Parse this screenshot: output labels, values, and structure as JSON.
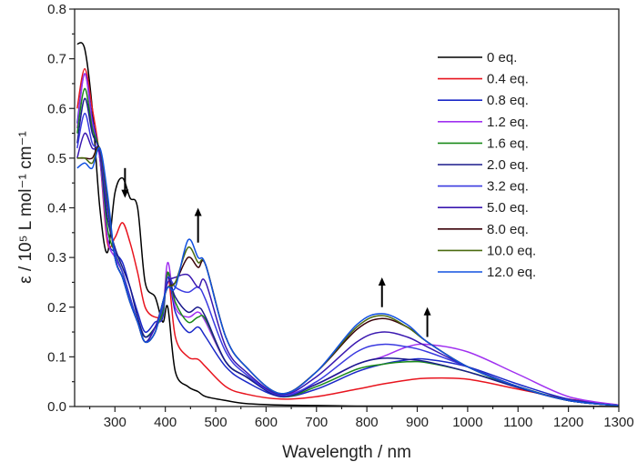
{
  "chart_data": {
    "type": "line",
    "title": "",
    "xlabel": "Wavelength / nm",
    "ylabel": "ε / 10⁵ L mol⁻¹ cm⁻¹",
    "ylabel_parts": {
      "a": "ε / 10",
      "sup1": "5",
      "b": " L mol",
      "sup2": "-1",
      "c": " cm",
      "sup3": "-1"
    },
    "xlim": [
      220,
      1300
    ],
    "ylim": [
      0.0,
      0.8
    ],
    "xticks": [
      300,
      400,
      500,
      600,
      700,
      800,
      900,
      1000,
      1100,
      1200,
      1300
    ],
    "xtick_labels": [
      "300",
      "400",
      "500",
      "600",
      "700",
      "800",
      "900",
      "1000",
      "1100",
      "1200",
      "1300"
    ],
    "yticks": [
      0.0,
      0.1,
      0.2,
      0.3,
      0.4,
      0.5,
      0.6,
      0.7,
      0.8
    ],
    "ytick_labels": [
      "0.0",
      "0.1",
      "0.2",
      "0.3",
      "0.4",
      "0.5",
      "0.6",
      "0.7",
      "0.8"
    ],
    "grid": false,
    "legend_position": "top-right",
    "x": [
      225,
      240,
      255,
      270,
      285,
      300,
      315,
      330,
      345,
      360,
      380,
      395,
      405,
      420,
      445,
      465,
      480,
      520,
      560,
      630,
      700,
      780,
      830,
      880,
      920,
      1000,
      1100,
      1200,
      1300
    ],
    "series": [
      {
        "name": "0 eq.",
        "color": "#000000",
        "values": [
          0.73,
          0.72,
          0.6,
          0.4,
          0.31,
          0.43,
          0.46,
          0.42,
          0.4,
          0.25,
          0.22,
          0.17,
          0.2,
          0.07,
          0.04,
          0.03,
          0.02,
          0.012,
          0.006,
          0.003,
          0.002,
          0.001,
          0.001,
          0.001,
          0.001,
          0.001,
          0.001,
          0.001,
          0.0
        ]
      },
      {
        "name": "0.4 eq.",
        "color": "#e8141e",
        "values": [
          0.6,
          0.68,
          0.6,
          0.5,
          0.33,
          0.34,
          0.37,
          0.33,
          0.27,
          0.2,
          0.18,
          0.19,
          0.27,
          0.14,
          0.1,
          0.095,
          0.08,
          0.04,
          0.025,
          0.015,
          0.02,
          0.035,
          0.045,
          0.053,
          0.057,
          0.055,
          0.035,
          0.015,
          0.003
        ]
      },
      {
        "name": "0.8 eq.",
        "color": "#1a28c8",
        "values": [
          0.57,
          0.67,
          0.58,
          0.5,
          0.34,
          0.31,
          0.29,
          0.24,
          0.19,
          0.15,
          0.17,
          0.18,
          0.27,
          0.19,
          0.15,
          0.16,
          0.14,
          0.08,
          0.05,
          0.02,
          0.035,
          0.07,
          0.085,
          0.094,
          0.095,
          0.08,
          0.045,
          0.015,
          0.003
        ]
      },
      {
        "name": "1.2 eq.",
        "color": "#a030f0",
        "values": [
          0.56,
          0.67,
          0.57,
          0.5,
          0.34,
          0.3,
          0.27,
          0.22,
          0.17,
          0.14,
          0.16,
          0.19,
          0.29,
          0.2,
          0.18,
          0.19,
          0.17,
          0.09,
          0.06,
          0.025,
          0.045,
          0.085,
          0.1,
          0.12,
          0.125,
          0.11,
          0.065,
          0.02,
          0.003
        ]
      },
      {
        "name": "1.6 eq.",
        "color": "#1a8a1a",
        "values": [
          0.55,
          0.64,
          0.56,
          0.51,
          0.36,
          0.31,
          0.27,
          0.22,
          0.17,
          0.14,
          0.16,
          0.19,
          0.27,
          0.21,
          0.17,
          0.18,
          0.175,
          0.09,
          0.06,
          0.02,
          0.04,
          0.075,
          0.085,
          0.09,
          0.088,
          0.07,
          0.04,
          0.012,
          0.002
        ]
      },
      {
        "name": "2.0 eq.",
        "color": "#1a1a8c",
        "values": [
          0.53,
          0.62,
          0.55,
          0.51,
          0.38,
          0.32,
          0.28,
          0.24,
          0.18,
          0.14,
          0.16,
          0.2,
          0.26,
          0.22,
          0.19,
          0.2,
          0.18,
          0.09,
          0.06,
          0.02,
          0.045,
          0.085,
          0.097,
          0.095,
          0.09,
          0.07,
          0.038,
          0.012,
          0.002
        ]
      },
      {
        "name": "3.2 eq.",
        "color": "#3a3ae0",
        "values": [
          0.52,
          0.59,
          0.53,
          0.51,
          0.4,
          0.31,
          0.27,
          0.22,
          0.17,
          0.13,
          0.16,
          0.2,
          0.26,
          0.24,
          0.23,
          0.24,
          0.215,
          0.11,
          0.065,
          0.022,
          0.05,
          0.11,
          0.125,
          0.12,
          0.11,
          0.08,
          0.04,
          0.012,
          0.002
        ]
      },
      {
        "name": "5.0 eq.",
        "color": "#3a18b0",
        "values": [
          0.5,
          0.55,
          0.52,
          0.51,
          0.41,
          0.3,
          0.26,
          0.21,
          0.17,
          0.13,
          0.16,
          0.21,
          0.25,
          0.26,
          0.265,
          0.24,
          0.25,
          0.12,
          0.07,
          0.024,
          0.06,
          0.13,
          0.15,
          0.14,
          0.12,
          0.08,
          0.04,
          0.012,
          0.002
        ]
      },
      {
        "name": "8.0 eq.",
        "color": "#3a0008",
        "values": [
          0.5,
          0.5,
          0.5,
          0.52,
          0.42,
          0.3,
          0.26,
          0.21,
          0.17,
          0.13,
          0.15,
          0.21,
          0.24,
          0.25,
          0.3,
          0.28,
          0.285,
          0.14,
          0.08,
          0.026,
          0.07,
          0.155,
          0.177,
          0.16,
          0.13,
          0.08,
          0.04,
          0.012,
          0.002
        ]
      },
      {
        "name": "10.0 eq.",
        "color": "#4a6a10",
        "values": [
          0.5,
          0.5,
          0.49,
          0.52,
          0.42,
          0.3,
          0.26,
          0.21,
          0.17,
          0.13,
          0.15,
          0.21,
          0.24,
          0.25,
          0.32,
          0.29,
          0.285,
          0.14,
          0.08,
          0.026,
          0.07,
          0.16,
          0.183,
          0.16,
          0.13,
          0.08,
          0.04,
          0.012,
          0.002
        ]
      },
      {
        "name": "12.0 eq.",
        "color": "#1050e0",
        "values": [
          0.48,
          0.49,
          0.48,
          0.52,
          0.43,
          0.3,
          0.26,
          0.21,
          0.17,
          0.13,
          0.15,
          0.21,
          0.24,
          0.24,
          0.335,
          0.3,
          0.285,
          0.14,
          0.08,
          0.026,
          0.07,
          0.165,
          0.187,
          0.165,
          0.13,
          0.08,
          0.04,
          0.012,
          0.002
        ]
      }
    ],
    "annotations": [
      {
        "type": "arrow",
        "x": 320,
        "from": 0.48,
        "to": 0.42,
        "direction": "down"
      },
      {
        "type": "arrow",
        "x": 465,
        "from": 0.33,
        "to": 0.4,
        "direction": "up"
      },
      {
        "type": "arrow",
        "x": 830,
        "from": 0.2,
        "to": 0.26,
        "direction": "up"
      },
      {
        "type": "arrow",
        "x": 920,
        "from": 0.14,
        "to": 0.2,
        "direction": "up"
      }
    ]
  }
}
